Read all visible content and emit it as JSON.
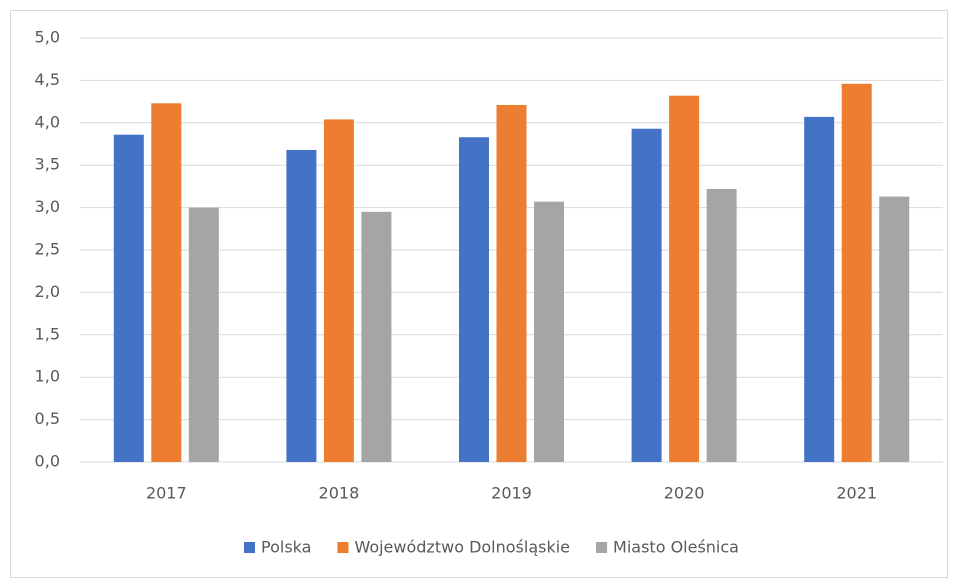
{
  "chart_data": {
    "type": "bar",
    "categories": [
      "2017",
      "2018",
      "2019",
      "2020",
      "2021"
    ],
    "series": [
      {
        "name": "Polska",
        "color": "#4472c4",
        "values": [
          3.86,
          3.68,
          3.83,
          3.93,
          4.07
        ]
      },
      {
        "name": "Województwo Dolnośląskie",
        "color": "#ed7d31",
        "values": [
          4.23,
          4.04,
          4.21,
          4.32,
          4.46
        ]
      },
      {
        "name": "Miasto Oleśnica",
        "color": "#a5a5a5",
        "values": [
          3.0,
          2.95,
          3.07,
          3.22,
          3.13
        ]
      }
    ],
    "ylim": [
      0,
      5
    ],
    "yticks": [
      {
        "value": 0,
        "label": "0,0"
      },
      {
        "value": 0.5,
        "label": "0,5"
      },
      {
        "value": 1,
        "label": "1,0"
      },
      {
        "value": 1.5,
        "label": "1,5"
      },
      {
        "value": 2,
        "label": "2,0"
      },
      {
        "value": 2.5,
        "label": "2,5"
      },
      {
        "value": 3,
        "label": "3,0"
      },
      {
        "value": 3.5,
        "label": "3,5"
      },
      {
        "value": 4,
        "label": "4,0"
      },
      {
        "value": 4.5,
        "label": "4,5"
      },
      {
        "value": 5,
        "label": "5,0"
      }
    ],
    "grid": true,
    "legend": "bottom"
  }
}
